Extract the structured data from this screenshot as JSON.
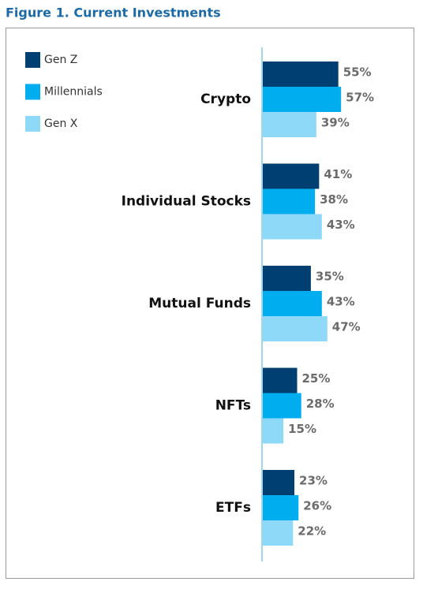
{
  "chart_data": {
    "type": "hbar",
    "title": "Figure 1. Current Investments",
    "categories": [
      "Crypto",
      "Individual Stocks",
      "Mutual Funds",
      "NFTs",
      "ETFs"
    ],
    "series": [
      {
        "name": "Gen Z",
        "color": "#003f72",
        "values": [
          55,
          41,
          35,
          25,
          23
        ],
        "value_labels": [
          "55%",
          "41%",
          "35%",
          "25%",
          "23%"
        ]
      },
      {
        "name": "Millennials",
        "color": "#00aeef",
        "values": [
          57,
          38,
          43,
          28,
          26
        ],
        "value_labels": [
          "57%",
          "38%",
          "43%",
          "28%",
          "26%"
        ]
      },
      {
        "name": "Gen X",
        "color": "#8ed8f8",
        "values": [
          39,
          43,
          47,
          15,
          22
        ],
        "value_labels": [
          "39%",
          "43%",
          "47%",
          "15%",
          "22%"
        ]
      }
    ]
  }
}
